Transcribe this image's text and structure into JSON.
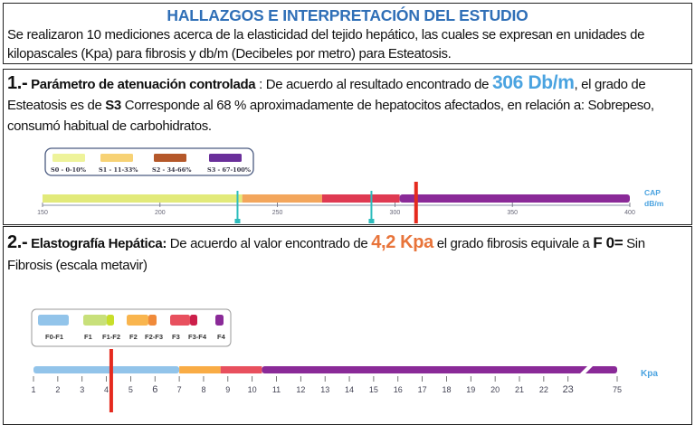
{
  "intro": {
    "title": "HALLAZGOS E INTERPRETACIÓN DEL ESTUDIO",
    "text": "Se realizaron 10 mediciones acerca de la elasticidad del tejido hepático, las cuales se expresan en unidades de kilopascales (Kpa) para fibrosis y db/m (Decibeles por metro) para Esteatosis."
  },
  "section1": {
    "number": "1.-",
    "heading": "Parámetro de atenuación controlada",
    "text_a": " : De acuerdo al resultado encontrado de ",
    "value": "306 Db/m",
    "text_b": ", el grado de Esteatosis es de ",
    "grade": "S3",
    "text_c": " Corresponde al  68 % aproximadamente de hepatocitos afectados, en relación a: Sobrepeso, consumó habitual de carbohidratos."
  },
  "section2": {
    "number": "2.-",
    "heading": "Elastografía Hepática:",
    "text_a": " De acuerdo al valor encontrado de ",
    "value": "4,2 Kpa",
    "text_b": " el grado fibrosis equivale a ",
    "grade": "F 0=",
    "text_c": " Sin Fibrosis (escala metavir)"
  },
  "chart_data": [
    {
      "type": "scale",
      "unit_label": [
        "CAP",
        "dB/m"
      ],
      "range": [
        150,
        400
      ],
      "ticks": [
        150,
        200,
        250,
        300,
        350,
        400
      ],
      "segments": [
        {
          "from": 150,
          "to": 235,
          "color": "#e2ea7a"
        },
        {
          "from": 235,
          "to": 269,
          "color": "#f3a65c"
        },
        {
          "from": 269,
          "to": 302,
          "color": "#df3a52"
        },
        {
          "from": 302,
          "to": 400,
          "color": "#8a2a98"
        }
      ],
      "legend": [
        {
          "label": "S0 - 0-10%",
          "color": "#eef39a"
        },
        {
          "label": "S1 - 11-33%",
          "color": "#f7d275"
        },
        {
          "label": "S2 - 34-66%",
          "color": "#b5582a"
        },
        {
          "label": "S3 - 67-100%",
          "color": "#6a2f9a"
        }
      ],
      "thresholds": [
        233,
        290
      ],
      "threshold_color": "#2cbcbc",
      "marker": 306,
      "marker_color": "#e52a1e"
    },
    {
      "type": "scale",
      "unit_label": [
        "Kpa"
      ],
      "ticks": [
        "1",
        "2",
        "3",
        "4",
        "5",
        "6",
        "7",
        "8",
        "9",
        "10",
        "11",
        "12",
        "13",
        "14",
        "15",
        "16",
        "17",
        "18",
        "19",
        "20",
        "21",
        "22",
        "23",
        "75"
      ],
      "segments": [
        {
          "from": 1,
          "to": 7,
          "color": "#92c4ea"
        },
        {
          "from": 7,
          "to": 8.7,
          "color": "#f9ac45"
        },
        {
          "from": 8.7,
          "to": 10.4,
          "color": "#e8505e"
        },
        {
          "from": 10.4,
          "to": 75,
          "color": "#8a2a98"
        }
      ],
      "legend": [
        {
          "label": "F0-F1",
          "color": "#92c4ea"
        },
        {
          "label": "F1",
          "color": "#c8e07a"
        },
        {
          "label": "F1-F2",
          "color": "#c8de2a"
        },
        {
          "label": "F2",
          "color": "#f9b54e"
        },
        {
          "label": "F2-F3",
          "color": "#f08a3a"
        },
        {
          "label": "F3",
          "color": "#e8505e"
        },
        {
          "label": "F3-F4",
          "color": "#cc1f4a"
        },
        {
          "label": "F4",
          "color": "#8a2a98"
        }
      ],
      "marker": 4.2,
      "marker_color": "#e52a1e"
    }
  ]
}
